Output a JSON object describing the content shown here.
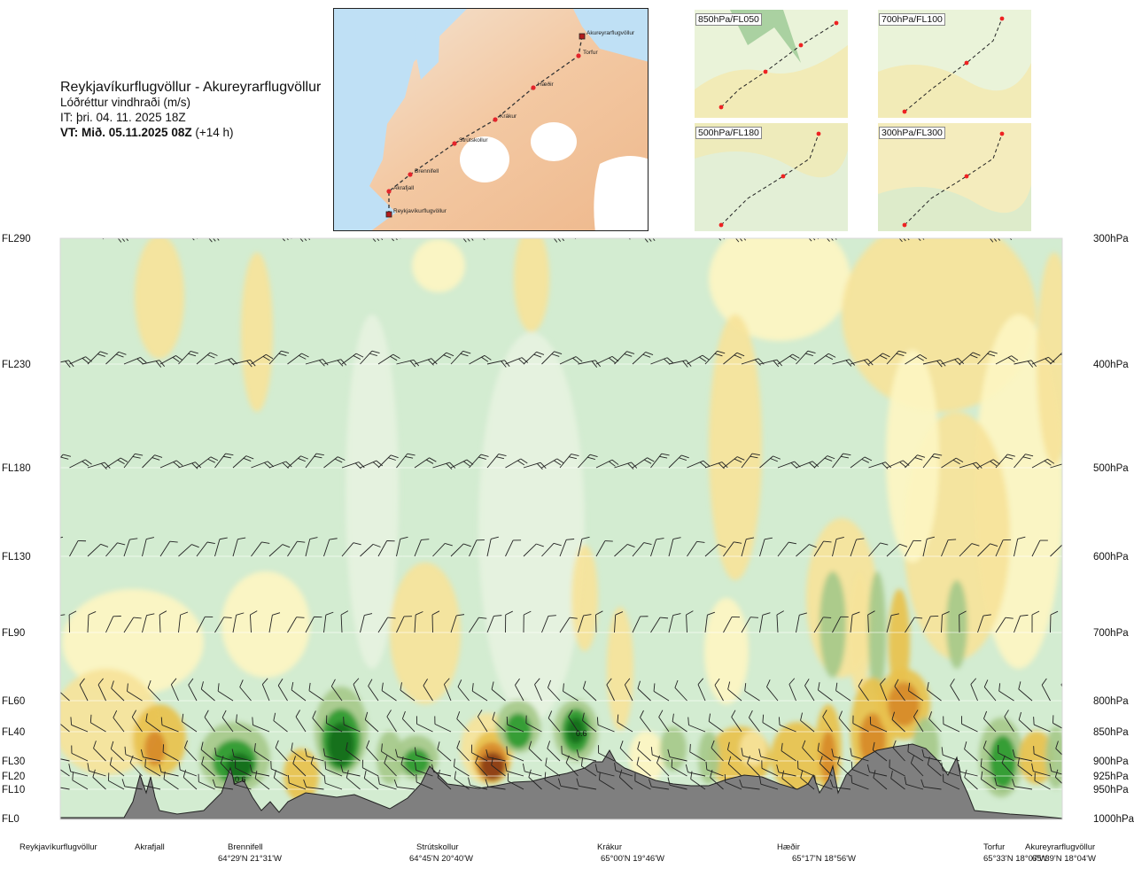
{
  "header": {
    "title": "Reykjavíkurflugvöllur - Akureyrarflugvöllur",
    "subtitle": "Lóðréttur vindhraði (m/s)",
    "issue_time": "IT: þri. 04. 11. 2025 18Z",
    "valid_time_bold": "VT: Mið. 05.11.2025 08Z",
    "valid_time_offset": " (+14 h)"
  },
  "map": {
    "points": [
      "Akureyrarflugvöllur",
      "Torfur",
      "Hæðir",
      "Krákur",
      "Strútskollur",
      "Brennifell",
      "Akrafjall",
      "Reykjavíkurflugvöllur"
    ]
  },
  "thumbnails": [
    "850hPa/FL050",
    "700hPa/FL100",
    "500hPa/FL180",
    "300hPa/FL300"
  ],
  "chart_data": {
    "type": "heatmap",
    "title": "Lóðréttur vindhraði (m/s)",
    "x_axis": "distance along route",
    "left_axis_labels": [
      "FL290",
      "FL230",
      "FL180",
      "FL130",
      "FL90",
      "FL60",
      "FL40",
      "FL30",
      "FL20",
      "FL10",
      "FL0"
    ],
    "right_axis_labels": [
      "300hPa",
      "400hPa",
      "500hPa",
      "600hPa",
      "700hPa",
      "800hPa",
      "850hPa",
      "900hPa",
      "925hPa",
      "950hPa",
      "1000hPa"
    ],
    "levels_hpa": [
      300,
      400,
      500,
      600,
      700,
      800,
      850,
      900,
      925,
      950,
      1000
    ],
    "route_points": [
      {
        "name": "Reykjavíkurflugvöllur",
        "coord": "",
        "pos": 0.0
      },
      {
        "name": "Akrafjall",
        "coord": "",
        "pos": 0.092
      },
      {
        "name": "Brennifell",
        "coord": "64°29'N 21°31'W",
        "pos": 0.185
      },
      {
        "name": "Strútskollur",
        "coord": "64°45'N 20°40'W",
        "pos": 0.376
      },
      {
        "name": "Krákur",
        "coord": "65°00'N 19°46'W",
        "pos": 0.56
      },
      {
        "name": "Hæðir",
        "coord": "65°17'N 18°56'W",
        "pos": 0.732
      },
      {
        "name": "Torfur",
        "coord": "65°33'N 18°07'W",
        "pos": 0.945
      },
      {
        "name": "Akureyrarflugvöllur",
        "coord": "65°39'N 18°04'W",
        "pos": 1.0
      }
    ],
    "annotations": [
      "0.6",
      "0.6"
    ],
    "colors": {
      "strong_down": "#a6c98a",
      "down": "#c9e6c7",
      "weak_down": "#e6f2df",
      "neutral": "#ffffff",
      "weak_up": "#fdf5c2",
      "up": "#f6e39a",
      "strong_up": "#e8c14d",
      "very_strong_up": "#d78a2a",
      "extreme_up": "#8a3c12",
      "strong_sink_1": "#7ebb6a",
      "strong_sink_2": "#2e9a2e",
      "strong_sink_3": "#0f6e1c",
      "terrain": "#7f7f7f"
    }
  }
}
